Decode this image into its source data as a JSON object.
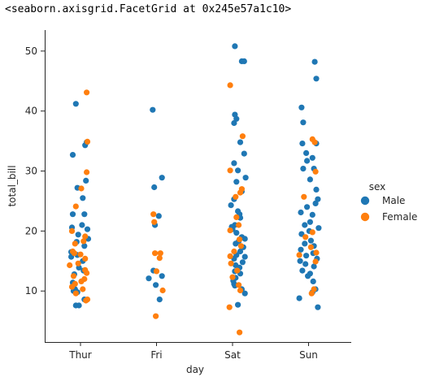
{
  "output_repr": "<seaborn.axisgrid.FacetGrid at 0x245e57a1c10>",
  "chart_data": {
    "type": "scatter",
    "subtype": "categorical-strip",
    "xlabel": "day",
    "ylabel": "total_bill",
    "categories": [
      "Thur",
      "Fri",
      "Sat",
      "Sun"
    ],
    "ylim": [
      1.5,
      53.5
    ],
    "yticks": [
      10,
      20,
      30,
      40,
      50
    ],
    "grid": false,
    "legend": {
      "title": "sex",
      "placement": "right"
    },
    "series": [
      {
        "name": "Male",
        "color": "#1f77b4",
        "points": [
          {
            "day": "Thur",
            "y": 41.2,
            "j": -0.06
          },
          {
            "day": "Thur",
            "y": 34.8,
            "j": 0.08
          },
          {
            "day": "Thur",
            "y": 34.3,
            "j": 0.06
          },
          {
            "day": "Thur",
            "y": 32.7,
            "j": -0.1
          },
          {
            "day": "Thur",
            "y": 28.4,
            "j": 0.07
          },
          {
            "day": "Thur",
            "y": 27.2,
            "j": -0.04
          },
          {
            "day": "Thur",
            "y": 25.5,
            "j": 0.03
          },
          {
            "day": "Thur",
            "y": 22.8,
            "j": -0.1
          },
          {
            "day": "Thur",
            "y": 22.8,
            "j": 0.05
          },
          {
            "day": "Thur",
            "y": 21.0,
            "j": 0.02
          },
          {
            "day": "Thur",
            "y": 20.6,
            "j": -0.11
          },
          {
            "day": "Thur",
            "y": 20.3,
            "j": 0.09
          },
          {
            "day": "Thur",
            "y": 19.4,
            "j": -0.03
          },
          {
            "day": "Thur",
            "y": 18.7,
            "j": 0.1
          },
          {
            "day": "Thur",
            "y": 18.2,
            "j": -0.05
          },
          {
            "day": "Thur",
            "y": 17.5,
            "j": 0.05
          },
          {
            "day": "Thur",
            "y": 16.5,
            "j": -0.12
          },
          {
            "day": "Thur",
            "y": 16.0,
            "j": -0.04
          },
          {
            "day": "Thur",
            "y": 15.7,
            "j": -0.12
          },
          {
            "day": "Thur",
            "y": 15.0,
            "j": 0.03
          },
          {
            "day": "Thur",
            "y": 13.9,
            "j": -0.02
          },
          {
            "day": "Thur",
            "y": 13.4,
            "j": 0.04
          },
          {
            "day": "Thur",
            "y": 12.8,
            "j": -0.08
          },
          {
            "day": "Thur",
            "y": 11.4,
            "j": -0.1
          },
          {
            "day": "Thur",
            "y": 10.3,
            "j": -0.07
          },
          {
            "day": "Thur",
            "y": 10.0,
            "j": -0.09
          },
          {
            "day": "Thur",
            "y": 9.8,
            "j": -0.04
          },
          {
            "day": "Thur",
            "y": 8.6,
            "j": 0.05
          },
          {
            "day": "Thur",
            "y": 7.6,
            "j": -0.06
          },
          {
            "day": "Thur",
            "y": 7.6,
            "j": -0.02
          },
          {
            "day": "Fri",
            "y": 40.2,
            "j": -0.05
          },
          {
            "day": "Fri",
            "y": 28.9,
            "j": 0.07
          },
          {
            "day": "Fri",
            "y": 27.3,
            "j": -0.03
          },
          {
            "day": "Fri",
            "y": 22.5,
            "j": 0.03
          },
          {
            "day": "Fri",
            "y": 21.0,
            "j": -0.02
          },
          {
            "day": "Fri",
            "y": 13.4,
            "j": -0.04
          },
          {
            "day": "Fri",
            "y": 12.5,
            "j": 0.07
          },
          {
            "day": "Fri",
            "y": 12.1,
            "j": -0.1
          },
          {
            "day": "Fri",
            "y": 11.0,
            "j": -0.01
          },
          {
            "day": "Fri",
            "y": 8.6,
            "j": 0.04
          },
          {
            "day": "Sat",
            "y": 50.8,
            "j": 0.03
          },
          {
            "day": "Sat",
            "y": 48.3,
            "j": 0.12
          },
          {
            "day": "Sat",
            "y": 48.3,
            "j": 0.15
          },
          {
            "day": "Sat",
            "y": 39.4,
            "j": 0.03
          },
          {
            "day": "Sat",
            "y": 38.7,
            "j": 0.05
          },
          {
            "day": "Sat",
            "y": 38.0,
            "j": 0.02
          },
          {
            "day": "Sat",
            "y": 34.8,
            "j": 0.1
          },
          {
            "day": "Sat",
            "y": 32.9,
            "j": 0.15
          },
          {
            "day": "Sat",
            "y": 31.3,
            "j": 0.02
          },
          {
            "day": "Sat",
            "y": 30.1,
            "j": 0.07
          },
          {
            "day": "Sat",
            "y": 28.9,
            "j": 0.17
          },
          {
            "day": "Sat",
            "y": 28.2,
            "j": 0.05
          },
          {
            "day": "Sat",
            "y": 26.6,
            "j": 0.12
          },
          {
            "day": "Sat",
            "y": 25.3,
            "j": 0.02
          },
          {
            "day": "Sat",
            "y": 24.3,
            "j": -0.02
          },
          {
            "day": "Sat",
            "y": 23.3,
            "j": 0.07
          },
          {
            "day": "Sat",
            "y": 22.8,
            "j": 0.09
          },
          {
            "day": "Sat",
            "y": 22.2,
            "j": 0.1
          },
          {
            "day": "Sat",
            "y": 21.0,
            "j": 0.03
          },
          {
            "day": "Sat",
            "y": 20.7,
            "j": -0.01
          },
          {
            "day": "Sat",
            "y": 20.3,
            "j": 0.0
          },
          {
            "day": "Sat",
            "y": 19.7,
            "j": 0.05
          },
          {
            "day": "Sat",
            "y": 19.0,
            "j": 0.12
          },
          {
            "day": "Sat",
            "y": 18.7,
            "j": 0.16
          },
          {
            "day": "Sat",
            "y": 18.3,
            "j": 0.08
          },
          {
            "day": "Sat",
            "y": 17.9,
            "j": 0.04
          },
          {
            "day": "Sat",
            "y": 17.3,
            "j": 0.14
          },
          {
            "day": "Sat",
            "y": 16.6,
            "j": 0.1
          },
          {
            "day": "Sat",
            "y": 16.0,
            "j": 0.05
          },
          {
            "day": "Sat",
            "y": 15.7,
            "j": 0.16
          },
          {
            "day": "Sat",
            "y": 15.4,
            "j": 0.02
          },
          {
            "day": "Sat",
            "y": 14.8,
            "j": 0.13
          },
          {
            "day": "Sat",
            "y": 14.3,
            "j": 0.04
          },
          {
            "day": "Sat",
            "y": 13.9,
            "j": 0.09
          },
          {
            "day": "Sat",
            "y": 13.3,
            "j": 0.03
          },
          {
            "day": "Sat",
            "y": 12.9,
            "j": 0.1
          },
          {
            "day": "Sat",
            "y": 12.2,
            "j": 0.04
          },
          {
            "day": "Sat",
            "y": 11.7,
            "j": 0.01
          },
          {
            "day": "Sat",
            "y": 11.2,
            "j": 0.02
          },
          {
            "day": "Sat",
            "y": 10.9,
            "j": 0.03
          },
          {
            "day": "Sat",
            "y": 10.3,
            "j": 0.12
          },
          {
            "day": "Sat",
            "y": 9.6,
            "j": 0.16
          },
          {
            "day": "Sat",
            "y": 7.7,
            "j": 0.07
          },
          {
            "day": "Sun",
            "y": 48.2,
            "j": 0.08
          },
          {
            "day": "Sun",
            "y": 45.4,
            "j": 0.1
          },
          {
            "day": "Sun",
            "y": 40.6,
            "j": -0.09
          },
          {
            "day": "Sun",
            "y": 38.1,
            "j": -0.07
          },
          {
            "day": "Sun",
            "y": 34.6,
            "j": -0.08
          },
          {
            "day": "Sun",
            "y": 34.6,
            "j": 0.1
          },
          {
            "day": "Sun",
            "y": 33.0,
            "j": -0.03
          },
          {
            "day": "Sun",
            "y": 32.2,
            "j": 0.05
          },
          {
            "day": "Sun",
            "y": 31.7,
            "j": -0.02
          },
          {
            "day": "Sun",
            "y": 30.4,
            "j": -0.07
          },
          {
            "day": "Sun",
            "y": 30.4,
            "j": 0.07
          },
          {
            "day": "Sun",
            "y": 28.6,
            "j": 0.02
          },
          {
            "day": "Sun",
            "y": 26.9,
            "j": 0.1
          },
          {
            "day": "Sun",
            "y": 25.3,
            "j": 0.12
          },
          {
            "day": "Sun",
            "y": 24.6,
            "j": 0.09
          },
          {
            "day": "Sun",
            "y": 24.0,
            "j": -0.02
          },
          {
            "day": "Sun",
            "y": 23.1,
            "j": -0.1
          },
          {
            "day": "Sun",
            "y": 22.7,
            "j": 0.05
          },
          {
            "day": "Sun",
            "y": 21.5,
            "j": 0.02
          },
          {
            "day": "Sun",
            "y": 21.0,
            "j": -0.05
          },
          {
            "day": "Sun",
            "y": 20.5,
            "j": 0.13
          },
          {
            "day": "Sun",
            "y": 20.0,
            "j": 0.01
          },
          {
            "day": "Sun",
            "y": 19.5,
            "j": -0.09
          },
          {
            "day": "Sun",
            "y": 18.4,
            "j": 0.03
          },
          {
            "day": "Sun",
            "y": 17.9,
            "j": -0.05
          },
          {
            "day": "Sun",
            "y": 17.5,
            "j": 0.07
          },
          {
            "day": "Sun",
            "y": 16.9,
            "j": -0.1
          },
          {
            "day": "Sun",
            "y": 16.3,
            "j": 0.06
          },
          {
            "day": "Sun",
            "y": 15.9,
            "j": -0.03
          },
          {
            "day": "Sun",
            "y": 15.4,
            "j": 0.11
          },
          {
            "day": "Sun",
            "y": 15.0,
            "j": -0.11
          },
          {
            "day": "Sun",
            "y": 14.5,
            "j": -0.04
          },
          {
            "day": "Sun",
            "y": 14.1,
            "j": 0.07
          },
          {
            "day": "Sun",
            "y": 13.4,
            "j": -0.08
          },
          {
            "day": "Sun",
            "y": 12.9,
            "j": 0.02
          },
          {
            "day": "Sun",
            "y": 12.5,
            "j": -0.01
          },
          {
            "day": "Sun",
            "y": 11.6,
            "j": 0.06
          },
          {
            "day": "Sun",
            "y": 10.3,
            "j": 0.09
          },
          {
            "day": "Sun",
            "y": 9.8,
            "j": 0.05
          },
          {
            "day": "Sun",
            "y": 8.8,
            "j": -0.12
          },
          {
            "day": "Sun",
            "y": 7.3,
            "j": 0.12
          }
        ]
      },
      {
        "name": "Female",
        "color": "#ff7f0e",
        "points": [
          {
            "day": "Thur",
            "y": 43.1,
            "j": 0.08
          },
          {
            "day": "Thur",
            "y": 34.9,
            "j": 0.09
          },
          {
            "day": "Thur",
            "y": 29.8,
            "j": 0.08
          },
          {
            "day": "Thur",
            "y": 27.1,
            "j": 0.01
          },
          {
            "day": "Thur",
            "y": 24.1,
            "j": -0.06
          },
          {
            "day": "Thur",
            "y": 20.0,
            "j": -0.11
          },
          {
            "day": "Thur",
            "y": 19.1,
            "j": 0.06
          },
          {
            "day": "Thur",
            "y": 18.3,
            "j": 0.04
          },
          {
            "day": "Thur",
            "y": 17.9,
            "j": -0.07
          },
          {
            "day": "Thur",
            "y": 16.6,
            "j": -0.1
          },
          {
            "day": "Thur",
            "y": 16.3,
            "j": -0.08
          },
          {
            "day": "Thur",
            "y": 16.1,
            "j": 0.0
          },
          {
            "day": "Thur",
            "y": 15.4,
            "j": 0.06
          },
          {
            "day": "Thur",
            "y": 14.6,
            "j": -0.03
          },
          {
            "day": "Thur",
            "y": 14.3,
            "j": -0.14
          },
          {
            "day": "Thur",
            "y": 13.5,
            "j": 0.06
          },
          {
            "day": "Thur",
            "y": 13.0,
            "j": 0.08
          },
          {
            "day": "Thur",
            "y": 12.5,
            "j": -0.09
          },
          {
            "day": "Thur",
            "y": 12.0,
            "j": 0.05
          },
          {
            "day": "Thur",
            "y": 11.6,
            "j": 0.01
          },
          {
            "day": "Thur",
            "y": 11.2,
            "j": -0.07
          },
          {
            "day": "Thur",
            "y": 10.7,
            "j": -0.11
          },
          {
            "day": "Thur",
            "y": 10.3,
            "j": 0.03
          },
          {
            "day": "Thur",
            "y": 9.6,
            "j": -0.06
          },
          {
            "day": "Thur",
            "y": 8.6,
            "j": 0.09
          },
          {
            "day": "Thur",
            "y": 8.4,
            "j": 0.07
          },
          {
            "day": "Fri",
            "y": 22.8,
            "j": -0.04
          },
          {
            "day": "Fri",
            "y": 21.5,
            "j": -0.03
          },
          {
            "day": "Fri",
            "y": 16.3,
            "j": -0.02
          },
          {
            "day": "Fri",
            "y": 16.3,
            "j": 0.05
          },
          {
            "day": "Fri",
            "y": 15.5,
            "j": 0.04
          },
          {
            "day": "Fri",
            "y": 13.3,
            "j": 0.0
          },
          {
            "day": "Fri",
            "y": 10.1,
            "j": 0.08
          },
          {
            "day": "Fri",
            "y": 5.8,
            "j": -0.01
          },
          {
            "day": "Sat",
            "y": 44.3,
            "j": -0.03
          },
          {
            "day": "Sat",
            "y": 35.8,
            "j": 0.13
          },
          {
            "day": "Sat",
            "y": 30.1,
            "j": -0.03
          },
          {
            "day": "Sat",
            "y": 27.0,
            "j": 0.12
          },
          {
            "day": "Sat",
            "y": 26.4,
            "j": 0.1
          },
          {
            "day": "Sat",
            "y": 25.7,
            "j": 0.04
          },
          {
            "day": "Sat",
            "y": 22.3,
            "j": 0.05
          },
          {
            "day": "Sat",
            "y": 21.0,
            "j": 0.08
          },
          {
            "day": "Sat",
            "y": 20.1,
            "j": -0.03
          },
          {
            "day": "Sat",
            "y": 18.6,
            "j": 0.09
          },
          {
            "day": "Sat",
            "y": 17.5,
            "j": 0.11
          },
          {
            "day": "Sat",
            "y": 16.6,
            "j": 0.02
          },
          {
            "day": "Sat",
            "y": 15.8,
            "j": -0.03
          },
          {
            "day": "Sat",
            "y": 14.6,
            "j": -0.02
          },
          {
            "day": "Sat",
            "y": 13.4,
            "j": 0.06
          },
          {
            "day": "Sat",
            "y": 12.3,
            "j": 0.0
          },
          {
            "day": "Sat",
            "y": 11.0,
            "j": 0.08
          },
          {
            "day": "Sat",
            "y": 10.1,
            "j": 0.1
          },
          {
            "day": "Sat",
            "y": 7.3,
            "j": -0.04
          },
          {
            "day": "Sat",
            "y": 3.1,
            "j": 0.09
          },
          {
            "day": "Sun",
            "y": 35.3,
            "j": 0.05
          },
          {
            "day": "Sun",
            "y": 34.8,
            "j": 0.08
          },
          {
            "day": "Sun",
            "y": 29.9,
            "j": 0.09
          },
          {
            "day": "Sun",
            "y": 25.7,
            "j": -0.06
          },
          {
            "day": "Sun",
            "y": 19.8,
            "j": 0.05
          },
          {
            "day": "Sun",
            "y": 19.0,
            "j": -0.04
          },
          {
            "day": "Sun",
            "y": 17.3,
            "j": 0.03
          },
          {
            "day": "Sun",
            "y": 16.4,
            "j": 0.1
          },
          {
            "day": "Sun",
            "y": 16.0,
            "j": -0.12
          },
          {
            "day": "Sun",
            "y": 14.9,
            "j": 0.09
          },
          {
            "day": "Sun",
            "y": 10.3,
            "j": 0.07
          },
          {
            "day": "Sun",
            "y": 9.6,
            "j": 0.04
          }
        ]
      }
    ]
  }
}
